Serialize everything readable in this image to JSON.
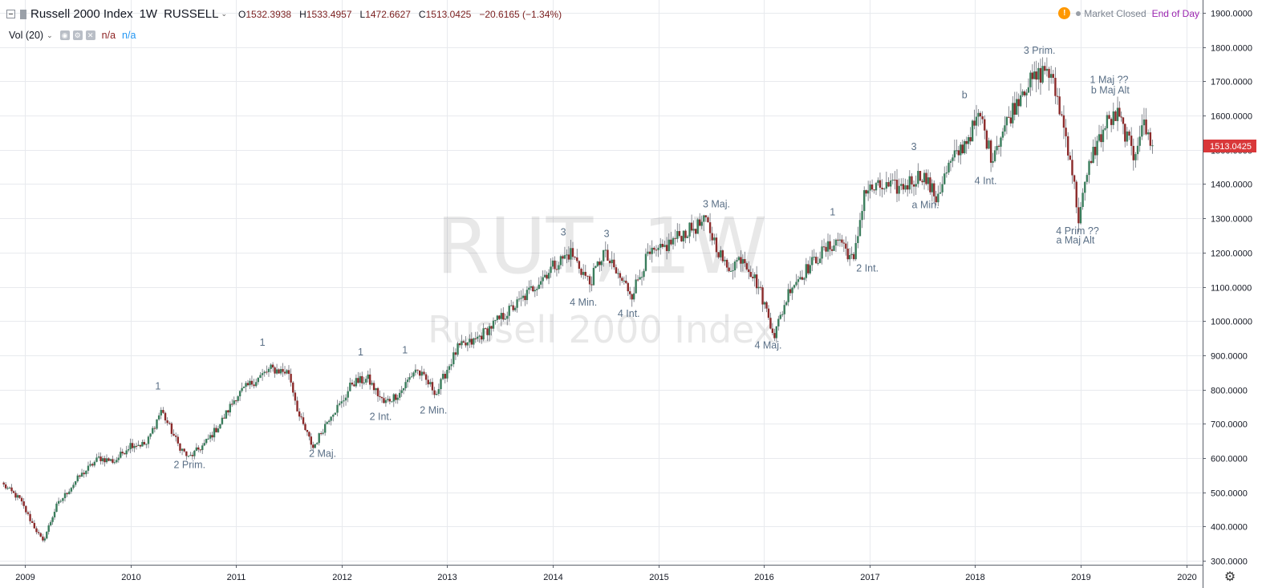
{
  "legend": {
    "name": "Russell 2000 Index",
    "interval": "1W",
    "exchange": "RUSSELL",
    "open_label": "O",
    "open": "1532.3938",
    "high_label": "H",
    "high": "1533.4957",
    "low_label": "L",
    "low": "1472.6627",
    "close_label": "C",
    "close": "1513.0425",
    "change": "−20.6165 (−1.34%)"
  },
  "volume": {
    "label": "Vol (20)",
    "value1": "n/a",
    "value2": "n/a"
  },
  "status": {
    "market": "Market Closed",
    "session": "End of Day"
  },
  "watermark": {
    "symbol": "RUT, 1W",
    "name": "Russell 2000 Index"
  },
  "icons": [
    "collapse-icon",
    "flag-icon",
    "chevron-down-icon",
    "eye-icon",
    "settings-icon",
    "close-icon",
    "warning-icon",
    "gear-icon"
  ],
  "colors": {
    "up": "#3a7d5c",
    "down": "#8b2a2a",
    "price_tag": "#d9383a",
    "session": "#9c27b0",
    "warning": "#ff9800"
  },
  "chart_data": {
    "type": "candlestick",
    "price_tag": "1513.0425",
    "y_ticks": [
      "300.0000",
      "400.0000",
      "500.0000",
      "600.0000",
      "700.0000",
      "800.0000",
      "900.0000",
      "1000.0000",
      "1100.0000",
      "1200.0000",
      "1300.0000",
      "1400.0000",
      "1500.0000",
      "1600.0000",
      "1700.0000",
      "1800.0000",
      "1900.0000"
    ],
    "x_ticks": [
      "2009",
      "2010",
      "2011",
      "2012",
      "2013",
      "2014",
      "2015",
      "2016",
      "2017",
      "2018",
      "2019",
      "2020"
    ],
    "ylim": [
      290,
      1930
    ],
    "xlim": [
      2008.8,
      2020.6
    ],
    "grid": true,
    "price_path": [
      [
        2008.8,
        520
      ],
      [
        2008.95,
        480
      ],
      [
        2009.05,
        420
      ],
      [
        2009.17,
        355
      ],
      [
        2009.3,
        460
      ],
      [
        2009.5,
        540
      ],
      [
        2009.7,
        600
      ],
      [
        2009.85,
        590
      ],
      [
        2010.0,
        640
      ],
      [
        2010.15,
        640
      ],
      [
        2010.29,
        740
      ],
      [
        2010.45,
        640
      ],
      [
        2010.55,
        600
      ],
      [
        2010.7,
        640
      ],
      [
        2010.85,
        700
      ],
      [
        2011.0,
        780
      ],
      [
        2011.15,
        820
      ],
      [
        2011.33,
        860
      ],
      [
        2011.5,
        850
      ],
      [
        2011.6,
        720
      ],
      [
        2011.73,
        630
      ],
      [
        2011.9,
        730
      ],
      [
        2012.0,
        760
      ],
      [
        2012.1,
        820
      ],
      [
        2012.25,
        830
      ],
      [
        2012.4,
        760
      ],
      [
        2012.55,
        790
      ],
      [
        2012.7,
        860
      ],
      [
        2012.9,
        790
      ],
      [
        2013.0,
        860
      ],
      [
        2013.1,
        920
      ],
      [
        2013.25,
        940
      ],
      [
        2013.4,
        980
      ],
      [
        2013.55,
        1020
      ],
      [
        2013.7,
        1060
      ],
      [
        2013.85,
        1110
      ],
      [
        2014.0,
        1160
      ],
      [
        2014.17,
        1200
      ],
      [
        2014.35,
        1110
      ],
      [
        2014.48,
        1200
      ],
      [
        2014.6,
        1140
      ],
      [
        2014.75,
        1080
      ],
      [
        2014.9,
        1190
      ],
      [
        2015.0,
        1200
      ],
      [
        2015.2,
        1250
      ],
      [
        2015.45,
        1290
      ],
      [
        2015.65,
        1150
      ],
      [
        2015.8,
        1190
      ],
      [
        2015.95,
        1100
      ],
      [
        2016.1,
        960
      ],
      [
        2016.25,
        1100
      ],
      [
        2016.4,
        1150
      ],
      [
        2016.55,
        1200
      ],
      [
        2016.72,
        1240
      ],
      [
        2016.85,
        1170
      ],
      [
        2016.95,
        1380
      ],
      [
        2017.1,
        1390
      ],
      [
        2017.3,
        1390
      ],
      [
        2017.5,
        1430
      ],
      [
        2017.63,
        1360
      ],
      [
        2017.75,
        1450
      ],
      [
        2017.9,
        1520
      ],
      [
        2018.05,
        1600
      ],
      [
        2018.15,
        1480
      ],
      [
        2018.3,
        1580
      ],
      [
        2018.45,
        1680
      ],
      [
        2018.58,
        1710
      ],
      [
        2018.68,
        1740
      ],
      [
        2018.78,
        1650
      ],
      [
        2018.9,
        1480
      ],
      [
        2018.98,
        1300
      ],
      [
        2019.1,
        1480
      ],
      [
        2019.25,
        1580
      ],
      [
        2019.35,
        1600
      ],
      [
        2019.42,
        1550
      ],
      [
        2019.5,
        1480
      ],
      [
        2019.58,
        1580
      ],
      [
        2019.68,
        1513
      ]
    ],
    "annotations": [
      {
        "text": "1",
        "x": 2010.26,
        "y": 800
      },
      {
        "text": "2 Prim.",
        "x": 2010.56,
        "y": 570
      },
      {
        "text": "1",
        "x": 2011.25,
        "y": 928
      },
      {
        "text": "2 Maj.",
        "x": 2011.82,
        "y": 603
      },
      {
        "text": "1",
        "x": 2012.18,
        "y": 900
      },
      {
        "text": "2 Int.",
        "x": 2012.37,
        "y": 711
      },
      {
        "text": "1",
        "x": 2012.6,
        "y": 905
      },
      {
        "text": "2 Min.",
        "x": 2012.87,
        "y": 730
      },
      {
        "text": "3",
        "x": 2014.1,
        "y": 1250
      },
      {
        "text": "4 Min.",
        "x": 2014.29,
        "y": 1045
      },
      {
        "text": "3",
        "x": 2014.51,
        "y": 1245
      },
      {
        "text": "4 Int.",
        "x": 2014.72,
        "y": 1012
      },
      {
        "text": "3 Maj.",
        "x": 2015.55,
        "y": 1332
      },
      {
        "text": "4 Maj.",
        "x": 2016.04,
        "y": 920
      },
      {
        "text": "1",
        "x": 2016.65,
        "y": 1308
      },
      {
        "text": "2 Int.",
        "x": 2016.98,
        "y": 1145
      },
      {
        "text": "3",
        "x": 2017.42,
        "y": 1500
      },
      {
        "text": "a Min.",
        "x": 2017.53,
        "y": 1330
      },
      {
        "text": "b",
        "x": 2017.9,
        "y": 1650
      },
      {
        "text": "4 Int.",
        "x": 2018.1,
        "y": 1400
      },
      {
        "text": "3 Prim.",
        "x": 2018.61,
        "y": 1780
      },
      {
        "text": "1 Maj ??",
        "x": 2019.27,
        "y": 1695
      },
      {
        "text": "b Maj Alt",
        "x": 2019.28,
        "y": 1665
      },
      {
        "text": "4 Prim ??",
        "x": 2018.97,
        "y": 1254
      },
      {
        "text": "a Maj Alt",
        "x": 2018.95,
        "y": 1226
      }
    ]
  }
}
